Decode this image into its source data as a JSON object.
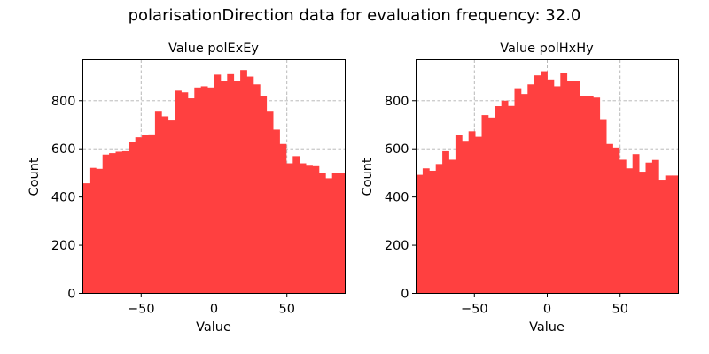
{
  "figure": {
    "suptitle": "polarisationDirection data for evaluation frequency: 32.0",
    "bar_color": "#ff4040"
  },
  "chart_data": [
    {
      "type": "bar",
      "title": "Value polExEy",
      "xlabel": "Value",
      "ylabel": "Count",
      "xlim": [
        -90,
        90
      ],
      "ylim": [
        0,
        970
      ],
      "xticks": [
        -50,
        0,
        50
      ],
      "xtick_labels": [
        "−50",
        "0",
        "50"
      ],
      "yticks": [
        0,
        200,
        400,
        600,
        800
      ],
      "ytick_labels": [
        "0",
        "200",
        "400",
        "600",
        "800"
      ],
      "grid": true,
      "bin_edges_start": -90,
      "bin_width": 4.5,
      "values": [
        457,
        521,
        517,
        576,
        582,
        588,
        590,
        630,
        648,
        658,
        660,
        758,
        735,
        718,
        842,
        835,
        810,
        855,
        860,
        855,
        908,
        880,
        910,
        880,
        927,
        900,
        868,
        820,
        758,
        680,
        620,
        540,
        570,
        540,
        530,
        528,
        500,
        478,
        500,
        500
      ]
    },
    {
      "type": "bar",
      "title": "Value polHxHy",
      "xlabel": "Value",
      "ylabel": "Count",
      "xlim": [
        -90,
        90
      ],
      "ylim": [
        0,
        970
      ],
      "xticks": [
        -50,
        0,
        50
      ],
      "xtick_labels": [
        "−50",
        "0",
        "50"
      ],
      "yticks": [
        0,
        200,
        400,
        600,
        800
      ],
      "ytick_labels": [
        "0",
        "200",
        "400",
        "600",
        "800"
      ],
      "grid": true,
      "bin_edges_start": -90,
      "bin_width": 4.5,
      "values": [
        492,
        519,
        509,
        537,
        590,
        555,
        659,
        633,
        673,
        650,
        740,
        730,
        777,
        800,
        778,
        852,
        828,
        868,
        905,
        922,
        888,
        860,
        915,
        883,
        880,
        820,
        820,
        813,
        720,
        620,
        605,
        555,
        519,
        578,
        505,
        543,
        554,
        472,
        489,
        489
      ]
    }
  ]
}
